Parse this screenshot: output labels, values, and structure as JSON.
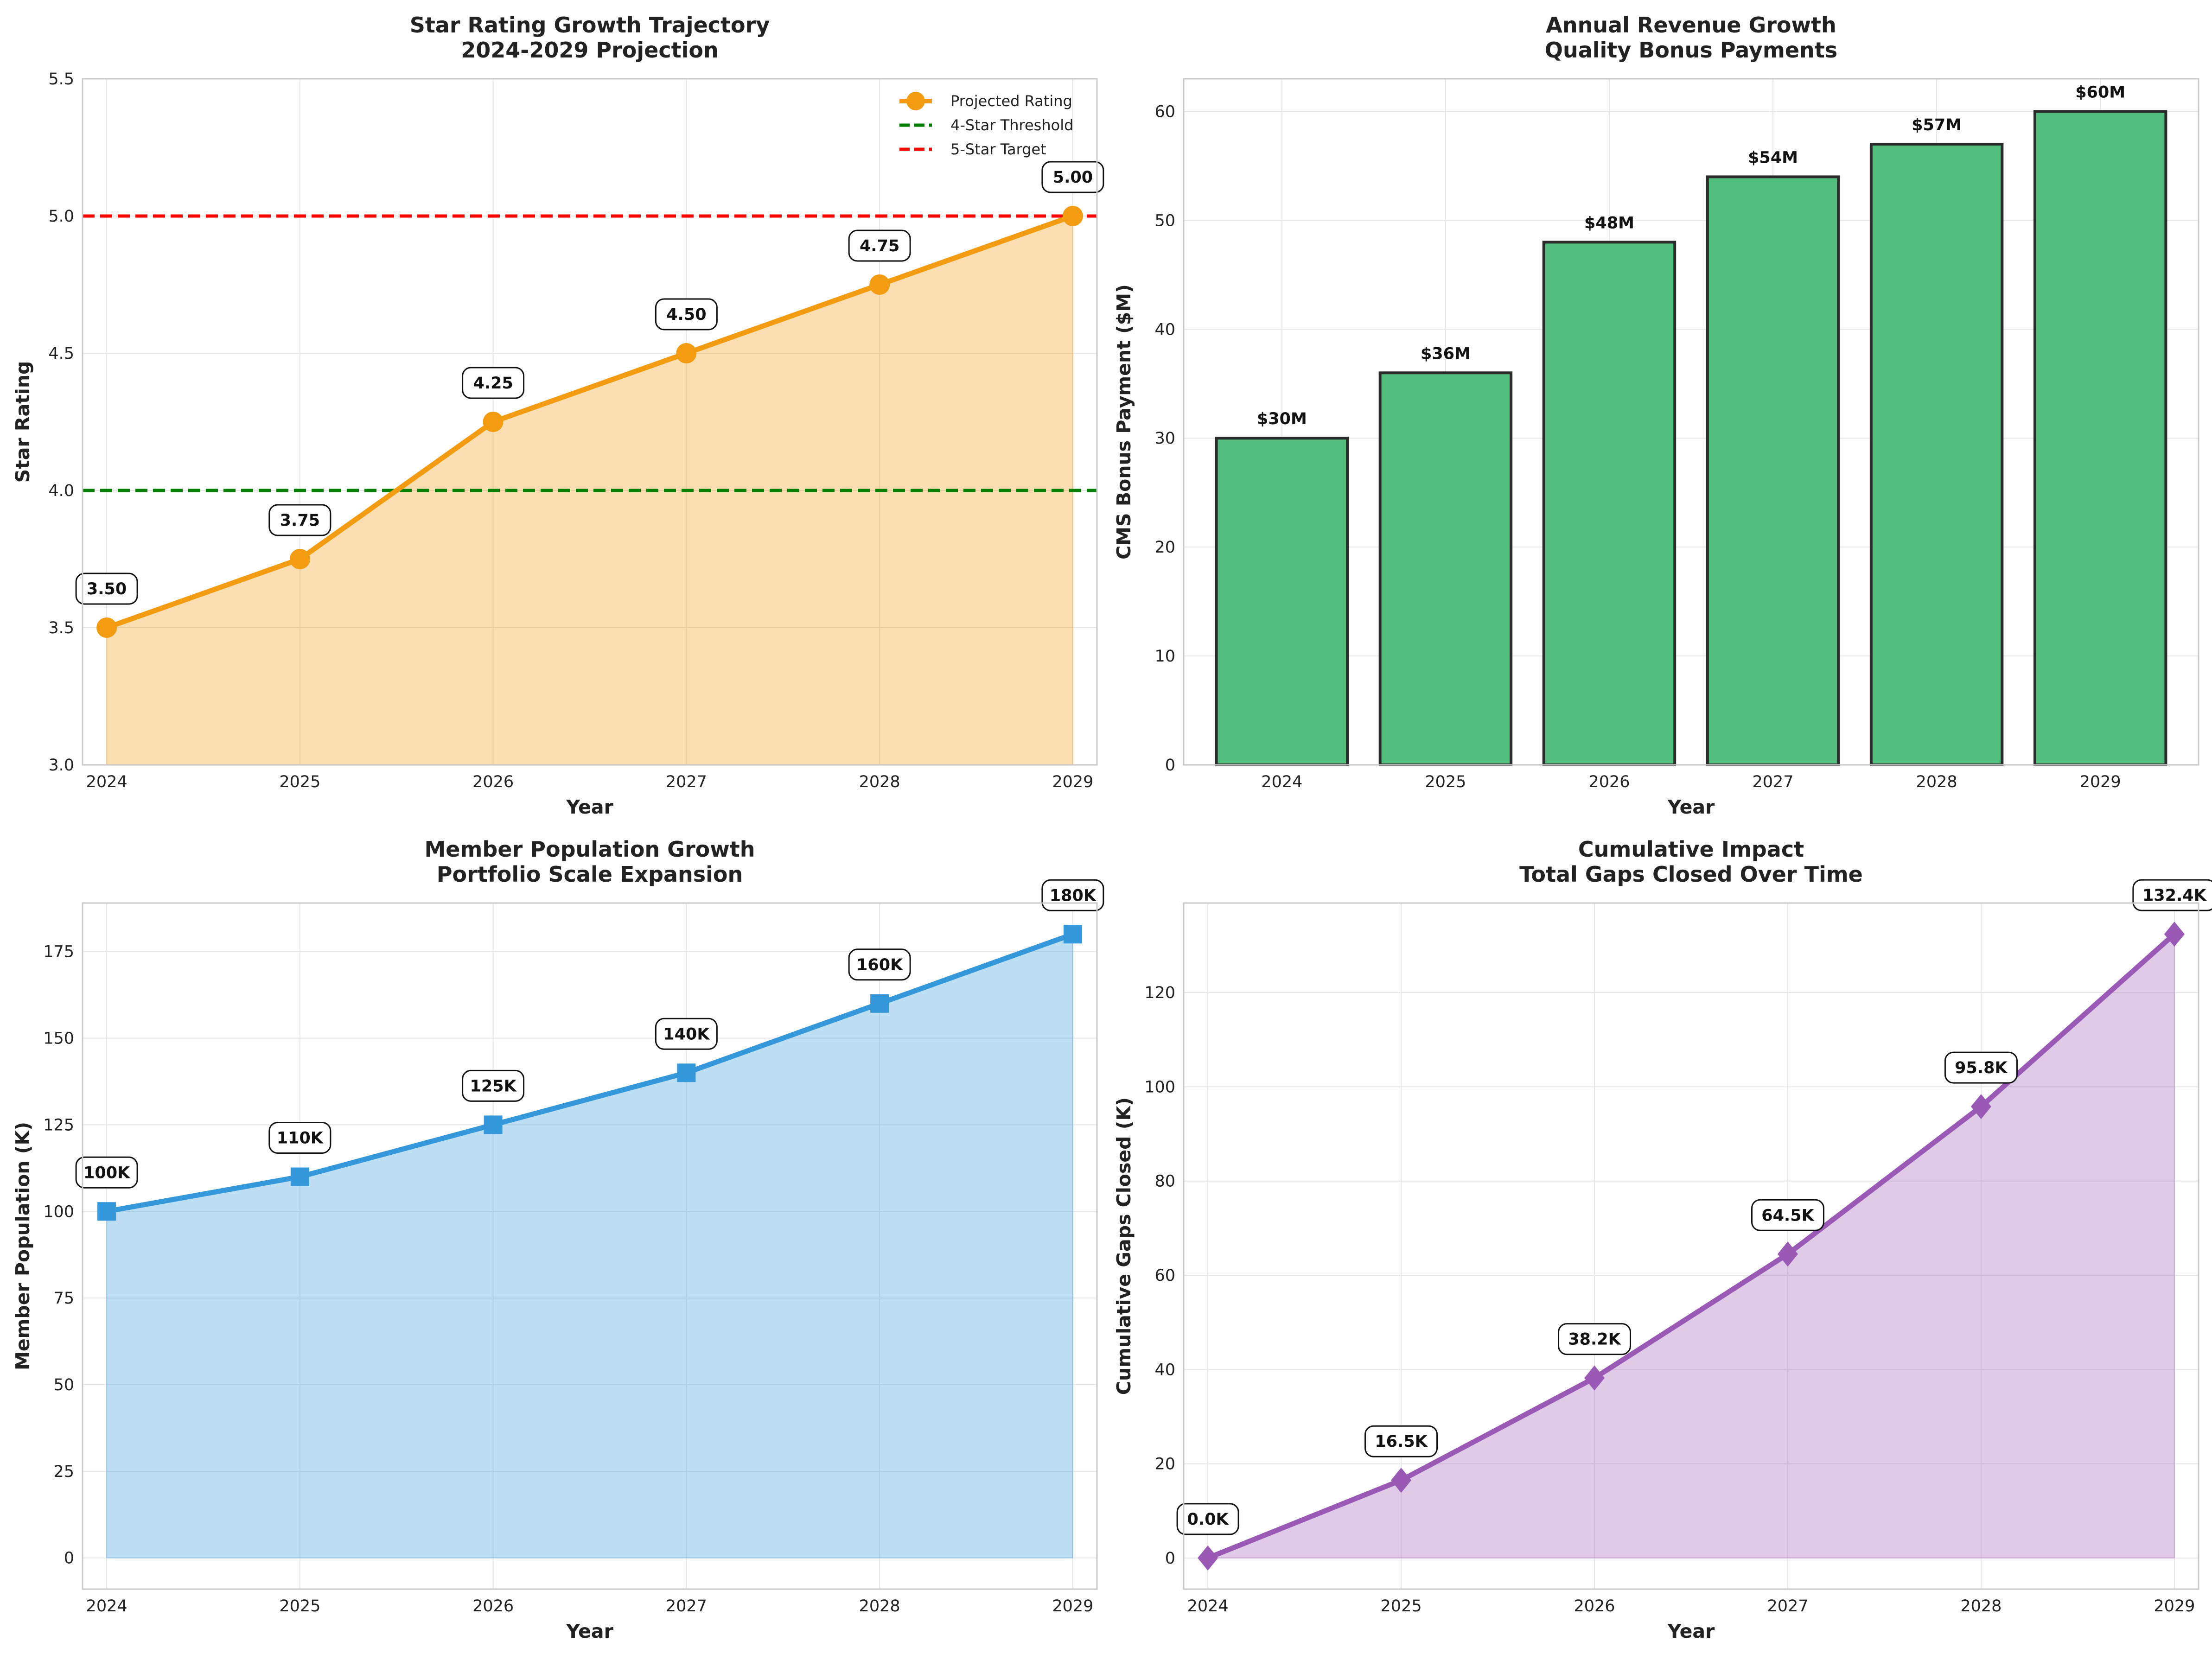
{
  "chart_data": [
    {
      "id": "star",
      "type": "line",
      "title_lines": [
        "Star Rating Growth Trajectory",
        "2024-2029 Projection"
      ],
      "xlabel": "Year",
      "ylabel": "Star Rating",
      "categories": [
        "2024",
        "2025",
        "2026",
        "2027",
        "2028",
        "2029"
      ],
      "series": [
        {
          "name": "Projected Rating",
          "values": [
            3.5,
            3.75,
            4.25,
            4.5,
            4.75,
            5.0
          ],
          "color": "#f39c12",
          "marker": "circle",
          "fill": true,
          "labels": [
            "3.50",
            "3.75",
            "4.25",
            "4.50",
            "4.75",
            "5.00"
          ]
        }
      ],
      "reference_lines": [
        {
          "name": "4-Star Threshold",
          "y": 4.0,
          "color": "#008000"
        },
        {
          "name": "5-Star Target",
          "y": 5.0,
          "color": "#ff0000"
        }
      ],
      "ylim": [
        3.0,
        5.5
      ],
      "yticks": [
        3.0,
        3.5,
        4.0,
        4.5,
        5.0,
        5.5
      ],
      "ytick_labels": [
        "3.0",
        "3.5",
        "4.0",
        "4.5",
        "5.0",
        "5.5"
      ],
      "grid": true,
      "legend": "top-right"
    },
    {
      "id": "revenue",
      "type": "bar",
      "title_lines": [
        "Annual Revenue Growth",
        "Quality Bonus Payments"
      ],
      "xlabel": "Year",
      "ylabel": "CMS Bonus Payment ($M)",
      "categories": [
        "2024",
        "2025",
        "2026",
        "2027",
        "2028",
        "2029"
      ],
      "series": [
        {
          "values": [
            30,
            36,
            48,
            54,
            57,
            60
          ],
          "color": "#52bf7f",
          "labels": [
            "$30M",
            "$36M",
            "$48M",
            "$54M",
            "$57M",
            "$60M"
          ]
        }
      ],
      "ylim": [
        0,
        63
      ],
      "yticks": [
        0,
        10,
        20,
        30,
        40,
        50,
        60
      ],
      "ytick_labels": [
        "0",
        "10",
        "20",
        "30",
        "40",
        "50",
        "60"
      ],
      "grid": true
    },
    {
      "id": "members",
      "type": "area",
      "title_lines": [
        "Member Population Growth",
        "Portfolio Scale Expansion"
      ],
      "xlabel": "Year",
      "ylabel": "Member Population (K)",
      "categories": [
        "2024",
        "2025",
        "2026",
        "2027",
        "2028",
        "2029"
      ],
      "series": [
        {
          "values": [
            100,
            110,
            125,
            140,
            160,
            180
          ],
          "color": "#3498db",
          "marker": "square",
          "fill": true,
          "labels": [
            "100K",
            "110K",
            "125K",
            "140K",
            "160K",
            "180K"
          ]
        }
      ],
      "ylim": [
        -9,
        189
      ],
      "yticks": [
        0,
        25,
        50,
        75,
        100,
        125,
        150,
        175
      ],
      "ytick_labels": [
        "0",
        "25",
        "50",
        "75",
        "100",
        "125",
        "150",
        "175"
      ],
      "grid": true
    },
    {
      "id": "gaps",
      "type": "area",
      "title_lines": [
        "Cumulative Impact",
        "Total Gaps Closed Over Time"
      ],
      "xlabel": "Year",
      "ylabel": "Cumulative Gaps Closed (K)",
      "categories": [
        "2024",
        "2025",
        "2026",
        "2027",
        "2028",
        "2029"
      ],
      "series": [
        {
          "values": [
            0.0,
            16.5,
            38.2,
            64.5,
            95.8,
            132.4
          ],
          "color": "#9b59b6",
          "marker": "diamond",
          "fill": true,
          "labels": [
            "0.0K",
            "16.5K",
            "38.2K",
            "64.5K",
            "95.8K",
            "132.4K"
          ]
        }
      ],
      "ylim": [
        -6.6,
        139
      ],
      "yticks": [
        0,
        20,
        40,
        60,
        80,
        100,
        120
      ],
      "ytick_labels": [
        "0",
        "20",
        "40",
        "60",
        "80",
        "100",
        "120"
      ],
      "grid": true
    }
  ]
}
